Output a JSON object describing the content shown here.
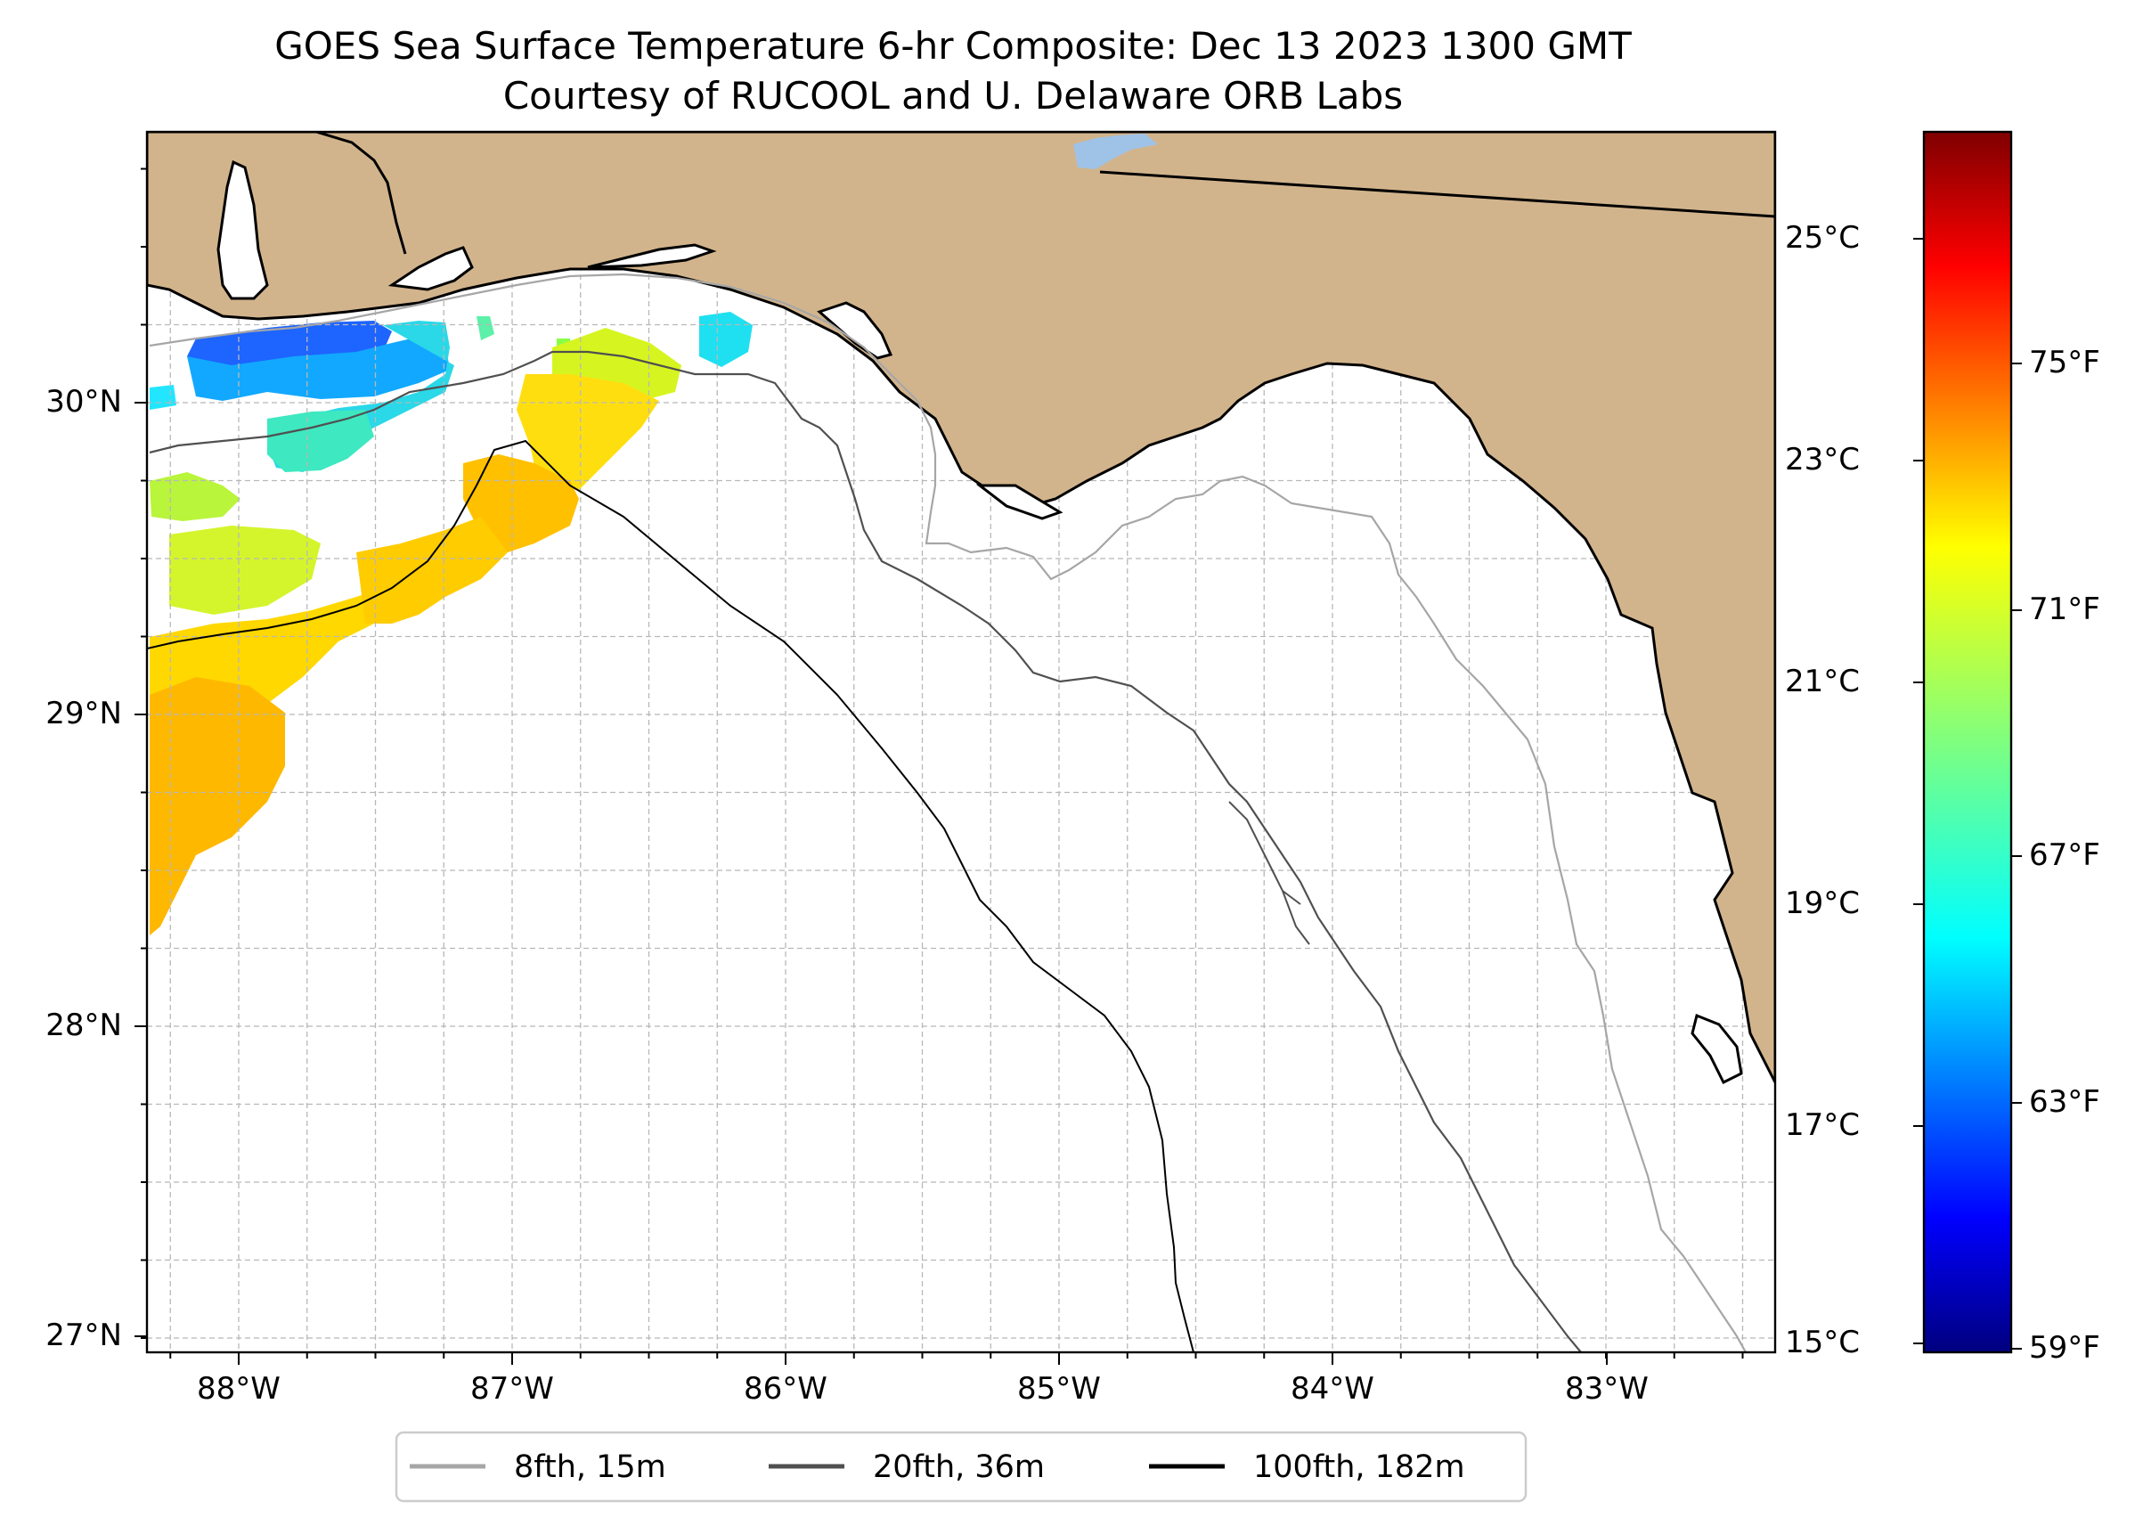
{
  "title": {
    "line1": "GOES Sea Surface Temperature 6-hr Composite: Dec 13 2023 1300 GMT",
    "line2": "Courtesy of RUCOOL and U. Delaware ORB Labs"
  },
  "map": {
    "lat_range": [
      26.93,
      30.85
    ],
    "lon_range": [
      -88.33,
      -82.38
    ],
    "lat_ticks": [
      "30°N",
      "29°N",
      "28°N",
      "27°N"
    ],
    "lon_ticks": [
      "88°W",
      "87°W",
      "86°W",
      "85°W",
      "84°W",
      "83°W"
    ],
    "land_color": "#d2b48c",
    "ocean_color": "#ffffff",
    "lake_color": "#9fc2e7",
    "gridlines": true
  },
  "colorbar": {
    "celsius_ticks": [
      "25°C",
      "23°C",
      "21°C",
      "19°C",
      "17°C",
      "15°C"
    ],
    "fahrenheit_ticks": [
      "75°F",
      "71°F",
      "67°F",
      "63°F",
      "59°F"
    ],
    "range_c": [
      15,
      26
    ],
    "colormap": "jet"
  },
  "legend": {
    "items": [
      {
        "label": "8fth, 15m",
        "color": "#a6a6a6"
      },
      {
        "label": "20fth, 36m",
        "color": "#505050"
      },
      {
        "label": "100fth, 182m",
        "color": "#000000"
      }
    ]
  }
}
